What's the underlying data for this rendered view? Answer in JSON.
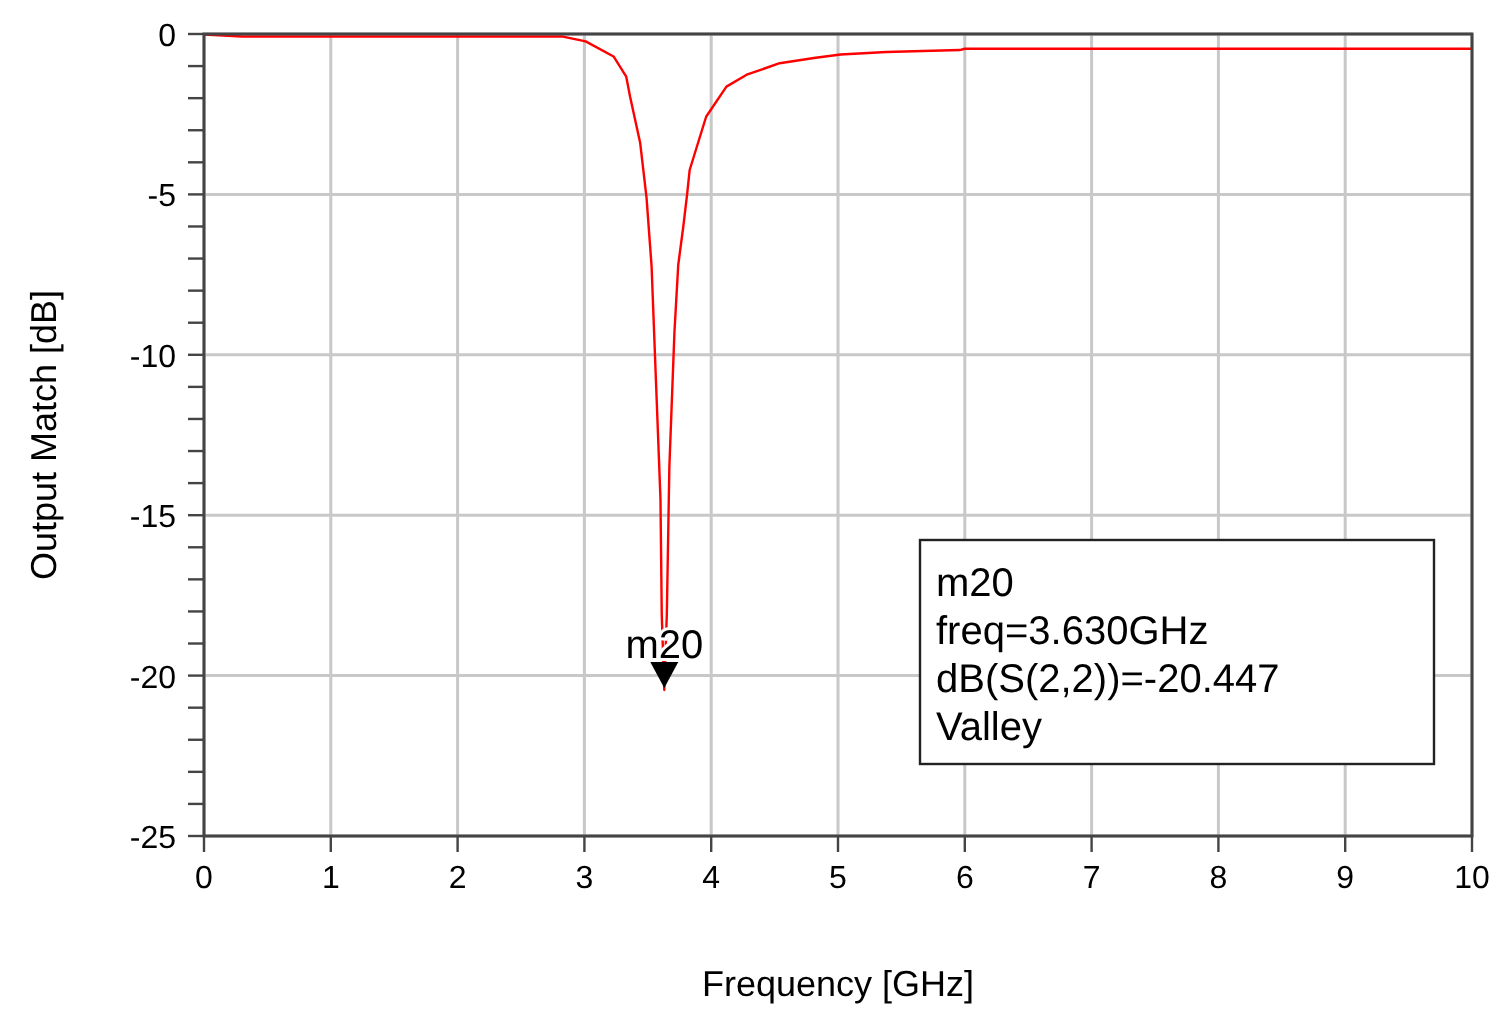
{
  "chart_data": {
    "type": "line",
    "xlabel": "Frequency [GHz]",
    "ylabel": "Output Match [dB]",
    "xlim": [
      0,
      10
    ],
    "ylim": [
      -25,
      0
    ],
    "xticks": [
      0,
      1,
      2,
      3,
      4,
      5,
      6,
      7,
      8,
      9,
      10
    ],
    "yticks": [
      -25,
      -20,
      -15,
      -10,
      -5,
      0
    ],
    "grid": true,
    "marker": "none",
    "line_style": "solid",
    "series": [
      {
        "color": "#ff0000",
        "x": [
          0,
          0.3,
          1,
          2,
          2.83,
          3.01,
          3.23,
          3.33,
          3.36,
          3.44,
          3.49,
          3.53,
          3.57,
          3.6,
          3.61,
          3.63,
          3.65,
          3.67,
          3.71,
          3.74,
          3.78,
          3.81,
          3.83,
          3.96,
          4.12,
          4.28,
          4.54,
          4.81,
          5.02,
          5.38,
          5.96,
          6,
          7,
          8,
          9,
          10
        ],
        "values": [
          -0.02,
          -0.08,
          -0.08,
          -0.08,
          -0.08,
          -0.23,
          -0.7,
          -1.33,
          -1.95,
          -3.4,
          -5.1,
          -7.25,
          -11.4,
          -14.5,
          -18.1,
          -20.447,
          -18.1,
          -13.5,
          -9.3,
          -7.2,
          -6.0,
          -5.0,
          -4.24,
          -2.58,
          -1.64,
          -1.27,
          -0.91,
          -0.75,
          -0.64,
          -0.56,
          -0.5,
          -0.46,
          -0.46,
          -0.46,
          -0.46,
          -0.46
        ]
      }
    ],
    "annotations": [
      {
        "text": "m20",
        "x": 3.63,
        "y": -20.447
      },
      "m20\nfreq=3.630GHz\ndB(S(2,2))=-20.447\nValley"
    ]
  }
}
